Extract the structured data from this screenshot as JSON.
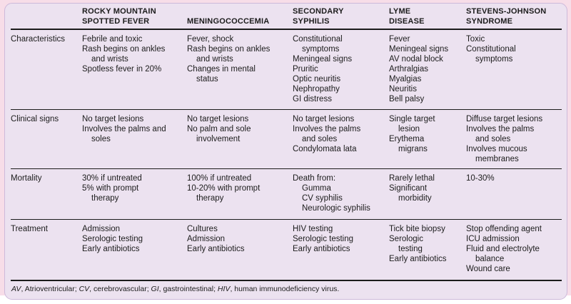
{
  "colors": {
    "page": "#ffffff",
    "mat_pink": "#f7dde8",
    "panel_background": "#ece2f0",
    "panel_border": "#cdb9da",
    "rule": "#1b1b1b",
    "text": "#1c1c1c"
  },
  "table": {
    "columns": [
      {
        "header_lines": [
          "ROCKY MOUNTAIN",
          "SPOTTED FEVER"
        ]
      },
      {
        "header_lines": [
          "MENINGOCOCCEMIA"
        ]
      },
      {
        "header_lines": [
          "SECONDARY",
          "SYPHILIS"
        ]
      },
      {
        "header_lines": [
          "LYME",
          "DISEASE"
        ]
      },
      {
        "header_lines": [
          "STEVENS-JOHNSON",
          "SYNDROME"
        ]
      }
    ],
    "rows": [
      {
        "key": "characteristics",
        "label": "Characteristics",
        "cells": [
          [
            [
              "Febrile and toxic",
              0
            ],
            [
              "Rash begins on ankles",
              0
            ],
            [
              "and wrists",
              1
            ],
            [
              "Spotless fever in 20%",
              0
            ]
          ],
          [
            [
              "Fever, shock",
              0
            ],
            [
              "Rash begins on ankles",
              0
            ],
            [
              "and wrists",
              1
            ],
            [
              "Changes in mental",
              0
            ],
            [
              "status",
              1
            ]
          ],
          [
            [
              "Constitutional",
              0
            ],
            [
              "symptoms",
              1
            ],
            [
              "Meningeal signs",
              0
            ],
            [
              "Pruritic",
              0
            ],
            [
              "Optic neuritis",
              0
            ],
            [
              "Nephropathy",
              0
            ],
            [
              "GI distress",
              0
            ]
          ],
          [
            [
              "Fever",
              0
            ],
            [
              "Meningeal signs",
              0
            ],
            [
              "AV nodal block",
              0
            ],
            [
              "Arthralgias",
              0
            ],
            [
              "Myalgias",
              0
            ],
            [
              "Neuritis",
              0
            ],
            [
              "Bell palsy",
              0
            ]
          ],
          [
            [
              "Toxic",
              0
            ],
            [
              "Constitutional",
              0
            ],
            [
              "symptoms",
              1
            ]
          ]
        ]
      },
      {
        "key": "clinical",
        "label": "Clinical signs",
        "cells": [
          [
            [
              "No target lesions",
              0
            ],
            [
              "Involves the palms and",
              0
            ],
            [
              "soles",
              1
            ]
          ],
          [
            [
              "No target lesions",
              0
            ],
            [
              "No palm and sole",
              0
            ],
            [
              "involvement",
              1
            ]
          ],
          [
            [
              "No target lesions",
              0
            ],
            [
              "Involves the palms",
              0
            ],
            [
              "and soles",
              1
            ],
            [
              "Condylomata lata",
              0
            ]
          ],
          [
            [
              "Single target",
              0
            ],
            [
              "lesion",
              1
            ],
            [
              "Erythema",
              0
            ],
            [
              "migrans",
              1
            ]
          ],
          [
            [
              "Diffuse target lesions",
              0
            ],
            [
              "Involves the palms",
              0
            ],
            [
              "and soles",
              1
            ],
            [
              "Involves mucous",
              0
            ],
            [
              "membranes",
              1
            ]
          ]
        ]
      },
      {
        "key": "mortality",
        "label": "Mortality",
        "cells": [
          [
            [
              "30% if untreated",
              0
            ],
            [
              "5% with prompt",
              0
            ],
            [
              "therapy",
              1
            ]
          ],
          [
            [
              "100% if untreated",
              0
            ],
            [
              "10-20% with prompt",
              0
            ],
            [
              "therapy",
              1
            ]
          ],
          [
            [
              "Death from:",
              0
            ],
            [
              "Gumma",
              1
            ],
            [
              "CV syphilis",
              1
            ],
            [
              "Neurologic syphilis",
              1
            ]
          ],
          [
            [
              "Rarely lethal",
              0
            ],
            [
              "Significant",
              0
            ],
            [
              "morbidity",
              1
            ]
          ],
          [
            [
              "10-30%",
              0
            ]
          ]
        ]
      },
      {
        "key": "treatment",
        "label": "Treatment",
        "cells": [
          [
            [
              "Admission",
              0
            ],
            [
              "Serologic testing",
              0
            ],
            [
              "Early antibiotics",
              0
            ]
          ],
          [
            [
              "Cultures",
              0
            ],
            [
              "Admission",
              0
            ],
            [
              "Early antibiotics",
              0
            ]
          ],
          [
            [
              "HIV testing",
              0
            ],
            [
              "Serologic testing",
              0
            ],
            [
              "Early antibiotics",
              0
            ]
          ],
          [
            [
              "Tick bite biopsy",
              0
            ],
            [
              "Serologic",
              0
            ],
            [
              "testing",
              1
            ],
            [
              "Early antibiotics",
              0
            ]
          ],
          [
            [
              "Stop offending agent",
              0
            ],
            [
              "ICU admission",
              0
            ],
            [
              "Fluid and electrolyte",
              0
            ],
            [
              "balance",
              1
            ],
            [
              "Wound care",
              0
            ]
          ]
        ]
      }
    ]
  },
  "footnote": {
    "segments": [
      {
        "t": "AV",
        "i": 1
      },
      {
        "t": ", Atrioventricular; ",
        "i": 0
      },
      {
        "t": "CV",
        "i": 1
      },
      {
        "t": ", cerebrovascular; ",
        "i": 0
      },
      {
        "t": "GI",
        "i": 1
      },
      {
        "t": ", gastrointestinal; ",
        "i": 0
      },
      {
        "t": "HIV",
        "i": 1
      },
      {
        "t": ", human immunodeficiency virus.",
        "i": 0
      }
    ]
  }
}
